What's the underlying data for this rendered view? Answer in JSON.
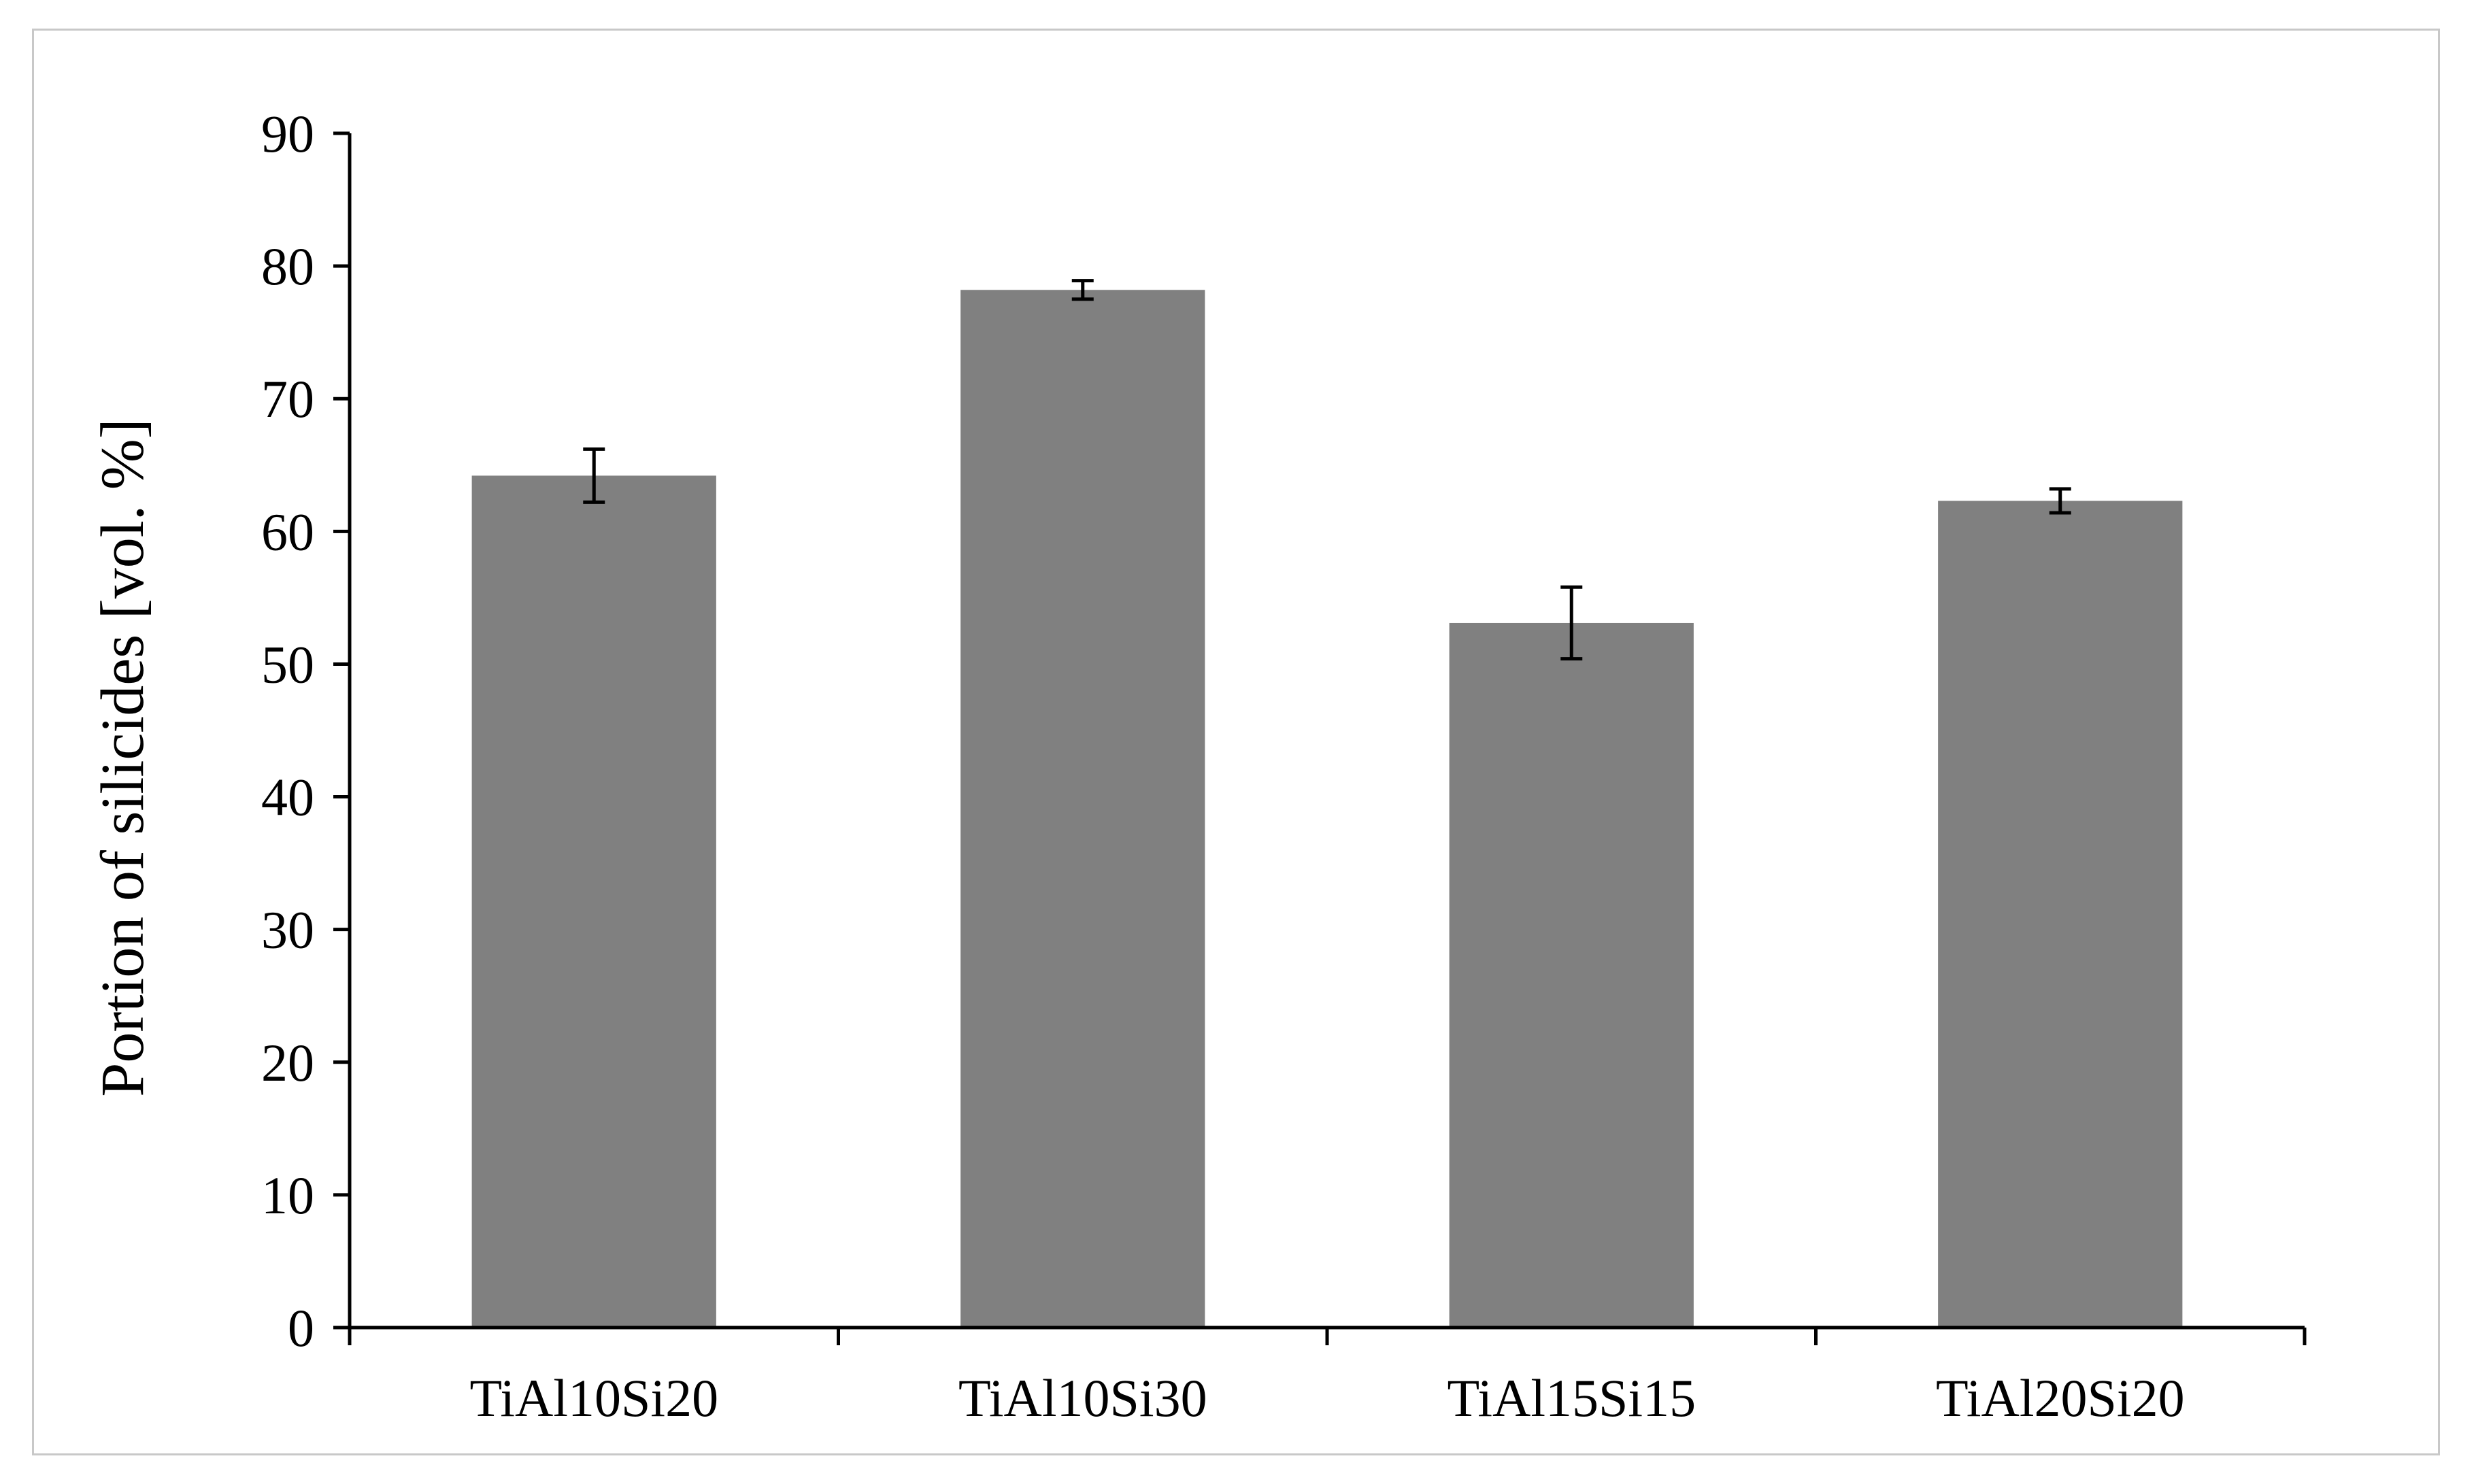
{
  "chart_data": {
    "type": "bar",
    "categories": [
      "TiAl10Si20",
      "TiAl10Si30",
      "TiAl15Si15",
      "TiAl20Si20"
    ],
    "values": [
      64.2,
      78.2,
      53.1,
      62.3
    ],
    "error_bars": [
      2.0,
      0.7,
      2.7,
      0.9
    ],
    "title": "",
    "xlabel": "",
    "ylabel": "Portion of silicides [vol. %]",
    "ylim": [
      0,
      90
    ],
    "yticks": [
      0,
      10,
      20,
      30,
      40,
      50,
      60,
      70,
      80,
      90
    ],
    "grid": false,
    "legend": "none",
    "bar_color": "#808080"
  }
}
